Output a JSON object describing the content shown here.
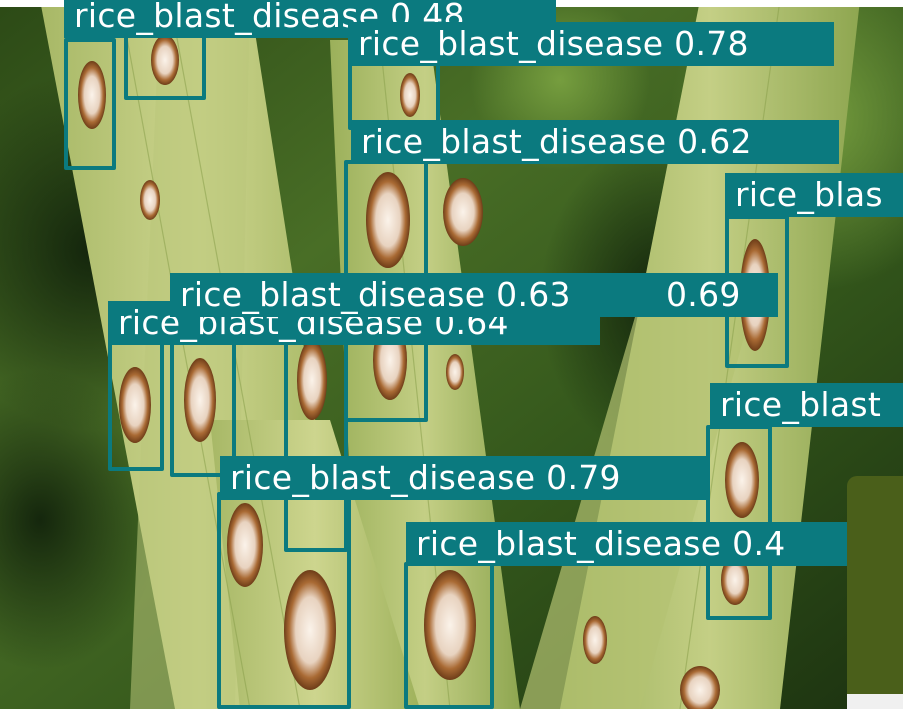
{
  "image": {
    "description_icon": "rice-leaf-photo",
    "colors": {
      "box": "#0b7a7f",
      "label_text": "#ffffff",
      "panel": "#4a5f1a"
    }
  },
  "detections": [
    {
      "label": "rice_blast_disease",
      "score": "0.48",
      "text": "rice_blast_disease 0.48"
    },
    {
      "label": "rice_blast_disease",
      "score": "0.78",
      "text": "rice_blast_disease 0.78"
    },
    {
      "label": "rice_blast_disease",
      "score": "0.62",
      "text": "rice_blast_disease 0.62"
    },
    {
      "label": "rice_blast_disease",
      "score": "",
      "text": "rice_blas"
    },
    {
      "label": "rice_blast_disease",
      "score": "0.63",
      "text": "rice_blast_disease 0.63"
    },
    {
      "label": "rice_blast_disease",
      "score": "0.69",
      "text": "0.69"
    },
    {
      "label": "rice_blast_disease",
      "score": "0.64",
      "text": "rice_blast_disease 0.64"
    },
    {
      "label": "rice_blast_disease",
      "score": "",
      "text": "rice_blast"
    },
    {
      "label": "rice_blast_disease",
      "score": "0.79",
      "text": "rice_blast_disease 0.79"
    },
    {
      "label": "rice_blast_disease",
      "score": "0.4",
      "text": "rice_blast_disease 0.4"
    }
  ]
}
